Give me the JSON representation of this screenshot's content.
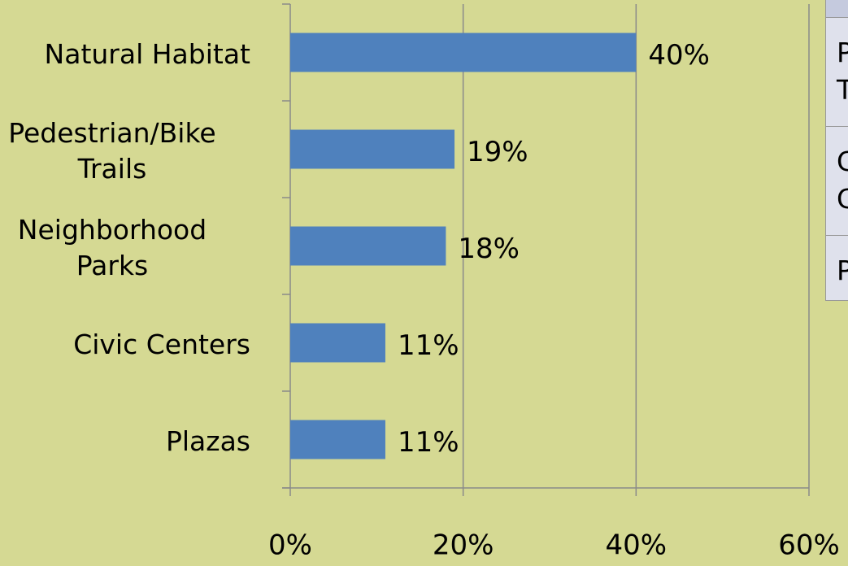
{
  "chart_data": {
    "type": "hbar",
    "categories": [
      "Natural Habitat",
      "Pedestrian/Bike\nTrails",
      "Neighborhood\nParks",
      "Civic Centers",
      "Plazas"
    ],
    "values": [
      40,
      19,
      18,
      11,
      11
    ],
    "value_labels": [
      "40%",
      "19%",
      "18%",
      "11%",
      "11%"
    ],
    "color": "#4f81bd",
    "xlim": [
      0,
      60
    ],
    "xticks": [
      {
        "value": 0,
        "label": "0%"
      },
      {
        "value": 20,
        "label": "20%"
      },
      {
        "value": 40,
        "label": "40%"
      },
      {
        "value": 60,
        "label": "60%"
      }
    ],
    "grid": true
  },
  "side_table": {
    "rows": [
      "P\nT",
      "C\nC",
      "P"
    ]
  }
}
